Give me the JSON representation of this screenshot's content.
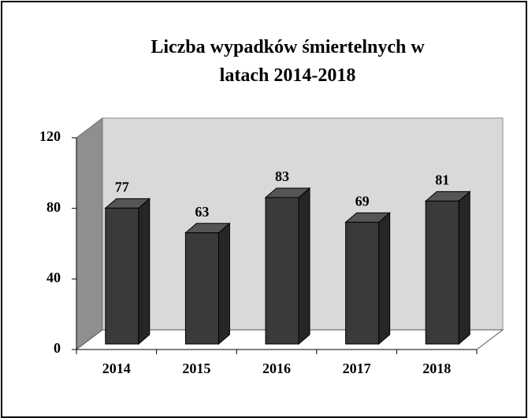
{
  "chart_data": {
    "type": "bar",
    "title": "Liczba wypadków śmiertelnych w latach 2014-2018",
    "categories": [
      "2014",
      "2015",
      "2016",
      "2017",
      "2018"
    ],
    "values": [
      77,
      63,
      83,
      69,
      81
    ],
    "color": "#3a3a3a",
    "ylim": [
      0,
      120
    ],
    "yticks": [
      0,
      40,
      80,
      120
    ],
    "grid": false
  }
}
